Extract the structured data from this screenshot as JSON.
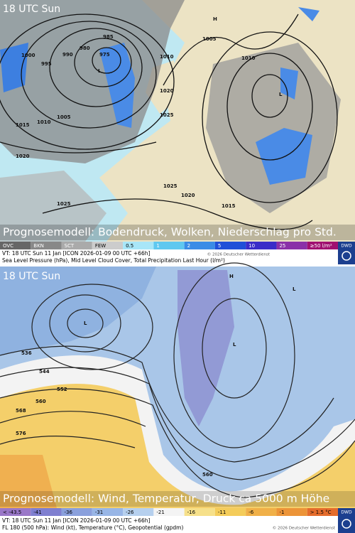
{
  "top_panel": {
    "time": "18 UTC Sun",
    "caption": "Prognosemodell: Bodendruck, Wolken, Niederschlag pro Std.",
    "legend": [
      "OVC",
      "BKN",
      "SCT",
      "FEW",
      "0.5",
      "1",
      "2",
      "5",
      "10",
      "25",
      "≥50 l/m²"
    ],
    "valid_time": "VT: 18 UTC Sun  11 Jan [ICON 2026-01-09 00 UTC +66h]",
    "copyright": "© 2026 Deutscher Wetterdienst",
    "description": "Sea Level Pressure (hPa), Mid Level Cloud Cover, Total Precipitation Last Hour (l/m²)",
    "logo": "DWD",
    "map_labels": [
      "1000",
      "995",
      "990",
      "985",
      "980",
      "975",
      "1005",
      "1010",
      "1015",
      "1020",
      "1025",
      "1010",
      "1005",
      "1020",
      "1025",
      "1010",
      "1015",
      "1020",
      "1025",
      "H",
      "L",
      "L"
    ]
  },
  "bottom_panel": {
    "time": "18 UTC Sun",
    "caption": "Prognosemodell: Wind, Temperatur, Druck ca 5000 m Höhe",
    "legend": [
      "< -43.5",
      "-41",
      "-36",
      "-31",
      "-26",
      "-21",
      "-16",
      "-11",
      "-6",
      "-1",
      "> 1.5 °C"
    ],
    "valid_time": "VT: 18 UTC Sun  11 Jan [ICON 2026-01-09 00 UTC +66h]",
    "copyright": "© 2026 Deutscher Wetterdienst",
    "description": "FL 180 (500 hPa): Wind (kt), Temperature (°C), Geopotential (gpdm)",
    "logo": "DWD",
    "map_labels": [
      "536",
      "544",
      "552",
      "560",
      "568",
      "576",
      "560",
      "H",
      "L",
      "L",
      "L"
    ]
  }
}
